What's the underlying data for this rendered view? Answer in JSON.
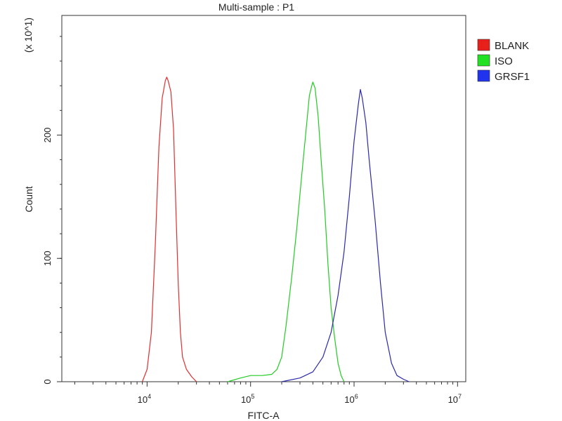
{
  "chart_data": {
    "type": "line",
    "title": "Multi-sample : P1",
    "xlabel": "FITC-A",
    "ylabel": "Count",
    "y_multiplier": "(x 10^1)",
    "x_scale": "log",
    "xlim": [
      1500,
      12000000
    ],
    "ylim": [
      0,
      297
    ],
    "x_ticks": [
      {
        "value": 10000,
        "base": "10",
        "exp": "4"
      },
      {
        "value": 100000,
        "base": "10",
        "exp": "5"
      },
      {
        "value": 1000000,
        "base": "10",
        "exp": "6"
      },
      {
        "value": 10000000,
        "base": "10",
        "exp": "7"
      }
    ],
    "y_ticks": [
      {
        "value": 0,
        "label": "0"
      },
      {
        "value": 100,
        "label": "100"
      },
      {
        "value": 200,
        "label": "200"
      }
    ],
    "legend_position": "right-outside-top",
    "series": [
      {
        "name": "BLANK",
        "color": "#e03030",
        "swatch": "#e8201c",
        "x": [
          9000,
          10000,
          11000,
          12000,
          13000,
          14000,
          15000,
          15500,
          16000,
          17000,
          18000,
          19000,
          20000,
          21000,
          22000,
          24000,
          27000,
          30000
        ],
        "y": [
          0,
          10,
          40,
          110,
          190,
          230,
          244,
          247,
          244,
          235,
          205,
          140,
          80,
          40,
          20,
          10,
          4,
          0
        ]
      },
      {
        "name": "ISO",
        "color": "#22cc22",
        "swatch": "#22e022",
        "x": [
          60000,
          80000,
          100000,
          130000,
          160000,
          180000,
          200000,
          220000,
          250000,
          280000,
          310000,
          340000,
          370000,
          390000,
          400000,
          420000,
          450000,
          480000,
          520000,
          560000,
          600000,
          650000,
          700000,
          750000,
          800000
        ],
        "y": [
          0,
          3,
          5,
          5,
          6,
          10,
          20,
          45,
          85,
          125,
          165,
          200,
          232,
          240,
          243,
          238,
          215,
          180,
          140,
          95,
          60,
          35,
          15,
          5,
          0
        ]
      },
      {
        "name": "GRSF1",
        "color": "#2a2aaa",
        "swatch": "#2233ee",
        "x": [
          200000,
          300000,
          400000,
          500000,
          600000,
          700000,
          800000,
          900000,
          1000000,
          1100000,
          1150000,
          1200000,
          1300000,
          1400000,
          1600000,
          1800000,
          2000000,
          2300000,
          2600000,
          3000000,
          3400000
        ],
        "y": [
          0,
          3,
          8,
          20,
          40,
          70,
          105,
          150,
          195,
          225,
          237,
          230,
          210,
          180,
          130,
          80,
          40,
          15,
          5,
          2,
          0
        ]
      }
    ]
  }
}
